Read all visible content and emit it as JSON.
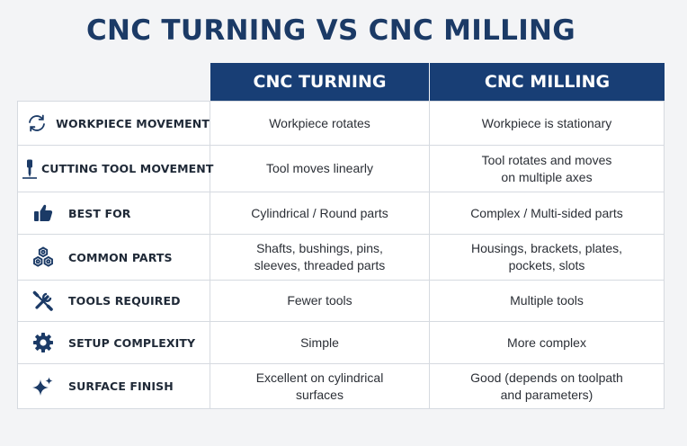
{
  "title": "CNC TURNING VS CNC MILLING",
  "columns": {
    "turning": "CNC TURNING",
    "milling": "CNC MILLING"
  },
  "rows": [
    {
      "icon": "rotate-arrows-icon",
      "label": "WORKPIECE MOVEMENT",
      "turning": "Workpiece rotates",
      "milling": "Workpiece is stationary"
    },
    {
      "icon": "cutting-tool-icon",
      "label": "CUTTING TOOL MOVEMENT",
      "turning": "Tool moves linearly",
      "milling": "Tool rotates and moves\non multiple axes"
    },
    {
      "icon": "thumbs-up-icon",
      "label": "BEST FOR",
      "turning": "Cylindrical / Round parts",
      "milling": "Complex / Multi-sided parts"
    },
    {
      "icon": "hex-nuts-icon",
      "label": "COMMON PARTS",
      "turning": "Shafts, bushings, pins,\nsleeves, threaded parts",
      "milling": "Housings, brackets, plates,\npockets, slots"
    },
    {
      "icon": "wrench-screwdriver-icon",
      "label": "TOOLS REQUIRED",
      "turning": "Fewer tools",
      "milling": "Multiple tools"
    },
    {
      "icon": "gear-icon",
      "label": "SETUP COMPLEXITY",
      "turning": "Simple",
      "milling": "More complex"
    },
    {
      "icon": "sparkle-icon",
      "label": "SURFACE FINISH",
      "turning": "Excellent on cylindrical\nsurfaces",
      "milling": "Good (depends on toolpath\nand parameters)"
    }
  ],
  "colors": {
    "header_bg": "#183e75",
    "title": "#1b3a66",
    "icon": "#1b3a66"
  }
}
